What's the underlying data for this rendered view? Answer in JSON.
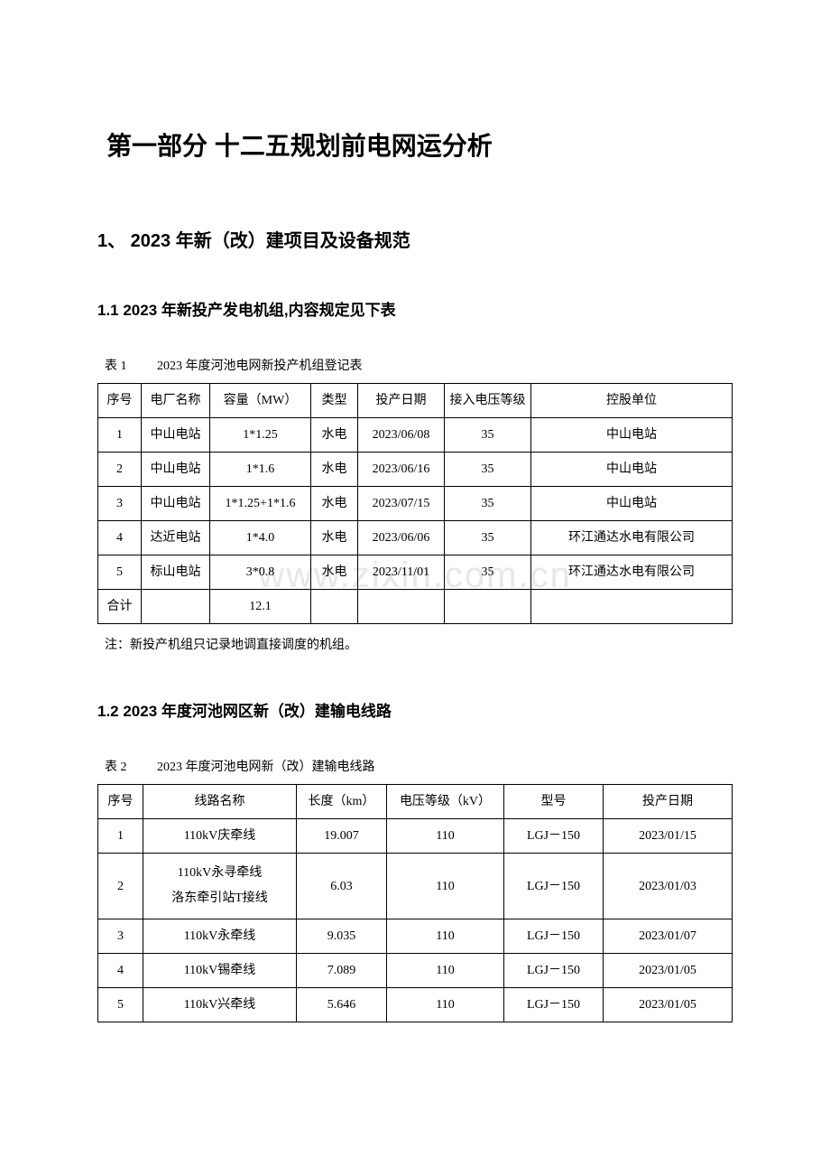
{
  "title": "第一部分 十二五规划前电网运分析",
  "section1": {
    "heading": "1、 2023 年新（改）建项目及设备规范",
    "sub1": {
      "heading": "1.1  2023 年新投产发电机组,内容规定见下表",
      "caption_num": "表 1",
      "caption_text": "2023 年度河池电网新投产机组登记表",
      "columns": [
        "序号",
        "电厂名称",
        "容量（MW）",
        "类型",
        "投产日期",
        "接入电压等级",
        "控股单位"
      ],
      "rows": [
        [
          "1",
          "中山电站",
          "1*1.25",
          "水电",
          "2023/06/08",
          "35",
          "中山电站"
        ],
        [
          "2",
          "中山电站",
          "1*1.6",
          "水电",
          "2023/06/16",
          "35",
          "中山电站"
        ],
        [
          "3",
          "中山电站",
          "1*1.25+1*1.6",
          "水电",
          "2023/07/15",
          "35",
          "中山电站"
        ],
        [
          "4",
          "达近电站",
          "1*4.0",
          "水电",
          "2023/06/06",
          "35",
          "环江通达水电有限公司"
        ],
        [
          "5",
          "标山电站",
          "3*0.8",
          "水电",
          "2023/11/01",
          "35",
          "环江通达水电有限公司"
        ],
        [
          "合计",
          "",
          "12.1",
          "",
          "",
          "",
          ""
        ]
      ],
      "note": "注：新投产机组只记录地调直接调度的机组。"
    },
    "sub2": {
      "heading": "1.2  2023 年度河池网区新（改）建输电线路",
      "caption_num": "表 2",
      "caption_text": "2023 年度河池电网新（改）建输电线路",
      "columns": [
        "序号",
        "线路名称",
        "长度（km）",
        "电压等级（kV）",
        "型号",
        "投产日期"
      ],
      "rows": [
        [
          "1",
          "110kV庆牵线",
          "19.007",
          "110",
          "LGJ－150",
          "2023/01/15"
        ],
        [
          "2",
          "110kV永寻牵线\n洛东牵引站T接线",
          "6.03",
          "110",
          "LGJ－150",
          "2023/01/03"
        ],
        [
          "3",
          "110kV永牵线",
          "9.035",
          "110",
          "LGJ－150",
          "2023/01/07"
        ],
        [
          "4",
          "110kV锡牵线",
          "7.089",
          "110",
          "LGJ－150",
          "2023/01/05"
        ],
        [
          "5",
          "110kV兴牵线",
          "5.646",
          "110",
          "LGJ－150",
          "2023/01/05"
        ]
      ]
    }
  },
  "watermark": "www.zixin.com.cn"
}
